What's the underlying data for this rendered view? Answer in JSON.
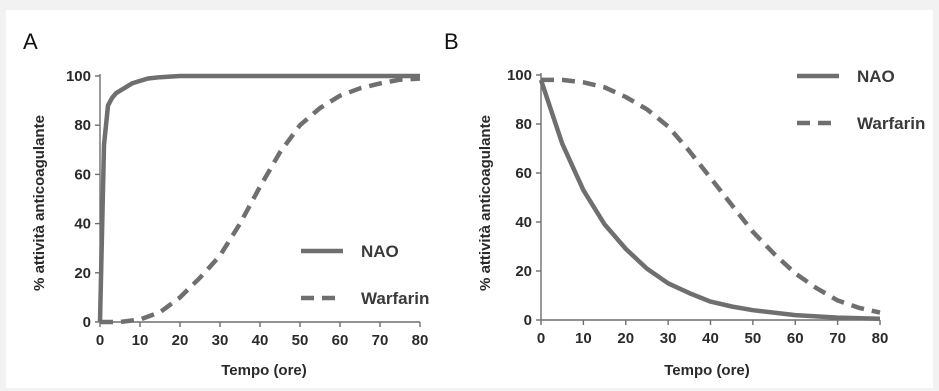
{
  "chart_data": [
    {
      "panel": "A",
      "type": "line",
      "xlabel": "Tempo (ore)",
      "ylabel": "% attività anticoagulante",
      "xlim": [
        0,
        80
      ],
      "ylim": [
        0,
        100
      ],
      "xticks": [
        0,
        10,
        20,
        30,
        40,
        50,
        60,
        70,
        80
      ],
      "yticks": [
        0,
        20,
        40,
        60,
        80,
        100
      ],
      "legend_position": "bottom-right",
      "grid": false,
      "series": [
        {
          "name": "NAO",
          "dash": "solid",
          "color": "#6f6f6f",
          "x": [
            0,
            1,
            2,
            3,
            4,
            6,
            8,
            10,
            12,
            15,
            20,
            30,
            40,
            50,
            60,
            70,
            80
          ],
          "y": [
            0,
            72,
            88,
            91,
            93,
            95,
            97,
            98,
            99,
            99.5,
            100,
            100,
            100,
            100,
            100,
            100,
            100
          ]
        },
        {
          "name": "Warfarin",
          "dash": "dashed",
          "color": "#6f6f6f",
          "x": [
            0,
            5,
            10,
            15,
            20,
            25,
            30,
            35,
            40,
            45,
            50,
            55,
            60,
            65,
            70,
            75,
            80
          ],
          "y": [
            0,
            0,
            1,
            4,
            10,
            18,
            27,
            40,
            55,
            69,
            80,
            87,
            92,
            95,
            97,
            98.5,
            99
          ]
        }
      ]
    },
    {
      "panel": "B",
      "type": "line",
      "xlabel": "Tempo (ore)",
      "ylabel": "% attività anticoagulante",
      "xlim": [
        0,
        80
      ],
      "ylim": [
        0,
        100
      ],
      "xticks": [
        0,
        10,
        20,
        30,
        40,
        50,
        60,
        70,
        80
      ],
      "yticks": [
        0,
        20,
        40,
        60,
        80,
        100
      ],
      "legend_position": "top-right",
      "grid": false,
      "series": [
        {
          "name": "NAO",
          "dash": "solid",
          "color": "#6f6f6f",
          "x": [
            0,
            5,
            10,
            15,
            20,
            25,
            30,
            35,
            40,
            45,
            50,
            60,
            70,
            80
          ],
          "y": [
            98,
            72,
            53,
            39,
            29,
            21,
            15,
            11,
            7.5,
            5.5,
            4,
            2,
            1,
            0.5
          ]
        },
        {
          "name": "Warfarin",
          "dash": "dashed",
          "color": "#6f6f6f",
          "x": [
            0,
            5,
            10,
            15,
            20,
            25,
            30,
            35,
            40,
            45,
            50,
            55,
            60,
            65,
            70,
            75,
            80
          ],
          "y": [
            98,
            98,
            97,
            95,
            91,
            86,
            79,
            69,
            58,
            47,
            36,
            27,
            19,
            13,
            8,
            5,
            3
          ]
        }
      ]
    }
  ]
}
